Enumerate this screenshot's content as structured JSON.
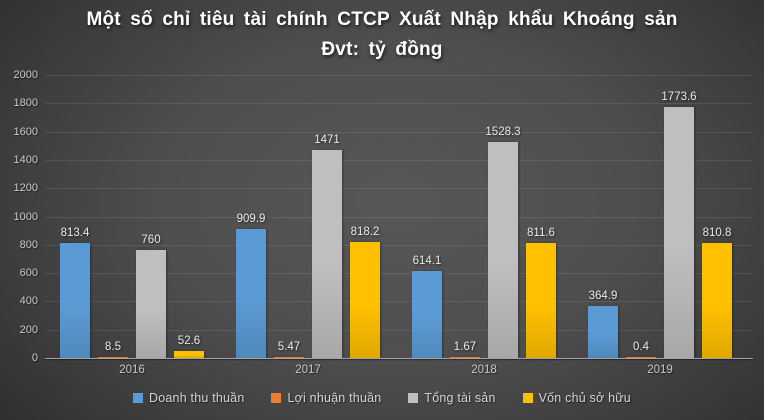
{
  "title": {
    "line1": "Một số chỉ tiêu tài chính CTCP Xuất Nhập khẩu Khoáng sản",
    "line2": "Đvt: tỷ đồng"
  },
  "chart_data": {
    "type": "bar",
    "title": "Một số chỉ tiêu tài chính CTCP Xuất Nhập khẩu Khoáng sản",
    "subtitle": "Đvt: tỷ đồng",
    "categories": [
      "2016",
      "2017",
      "2018",
      "2019"
    ],
    "series": [
      {
        "name": "Doanh thu thuần",
        "slug": "doanh-thu-thuan",
        "color": "#5B9BD5",
        "values": [
          813.4,
          909.9,
          614.1,
          364.9
        ]
      },
      {
        "name": "Lợi nhuận thuần",
        "slug": "loi-nhuan-thuan",
        "color": "#ED7D31",
        "values": [
          8.5,
          5.47,
          1.67,
          0.4
        ]
      },
      {
        "name": "Tổng tài sản",
        "slug": "tong-tai-san",
        "color": "#BFBFBF",
        "values": [
          760,
          1471,
          1528.3,
          1773.6
        ]
      },
      {
        "name": "Vốn chủ sở hữu",
        "slug": "von-chu-so-huu",
        "color": "#FFC000",
        "values": [
          52.6,
          818.2,
          811.6,
          810.8
        ]
      }
    ],
    "ylim": [
      0,
      2000
    ],
    "ytick_step": 200,
    "yticks": [
      0,
      200,
      400,
      600,
      800,
      1000,
      1200,
      1400,
      1600,
      1800,
      2000
    ],
    "grid": true,
    "legend_position": "bottom",
    "data_labels": true,
    "colors": {
      "background_center": "#575757",
      "background_edge": "#242424",
      "axis_line": "#a3a3a3",
      "tick_text": "#c9c9c9",
      "data_label_text": "#e9e9e9",
      "title_text": "#ffffff"
    }
  }
}
